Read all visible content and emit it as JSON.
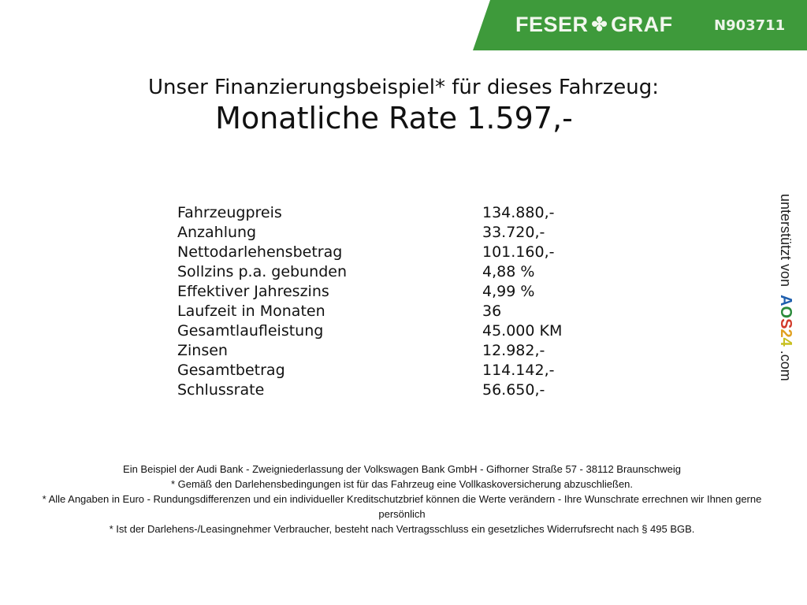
{
  "header": {
    "brand": "FESER",
    "brand2": "GRAF",
    "logo_icon": "clover-icon",
    "code": "N903711",
    "color": "#3e9a3b"
  },
  "title": {
    "line1": "Unser Finanzierungsbeispiel* für dieses Fahrzeug:",
    "line2": "Monatliche Rate 1.597,-"
  },
  "rows": [
    {
      "label": "Fahrzeugpreis",
      "value": "134.880,-"
    },
    {
      "label": "Anzahlung",
      "value": "33.720,-"
    },
    {
      "label": "Nettodarlehensbetrag",
      "value": "101.160,-"
    },
    {
      "label": "Sollzins p.a. gebunden",
      "value": "4,88 %"
    },
    {
      "label": "Effektiver Jahreszins",
      "value": "4,99 %"
    },
    {
      "label": "Laufzeit in Monaten",
      "value": "36"
    },
    {
      "label": "Gesamtlaufleistung",
      "value": "45.000 KM"
    },
    {
      "label": "Zinsen",
      "value": "12.982,-"
    },
    {
      "label": "Gesamtbetrag",
      "value": "114.142,-"
    },
    {
      "label": "Schlussrate",
      "value": "56.650,-"
    }
  ],
  "side": {
    "text": "unterstützt von",
    "a": "A",
    "o": "O",
    "s": "S",
    "two": "2",
    "four": "4",
    "suffix": ".com"
  },
  "footer": [
    "Ein Beispiel der Audi Bank - Zweigniederlassung der Volkswagen Bank GmbH - Gifhorner Straße 57 - 38112 Braunschweig",
    "* Gemäß den Darlehensbedingungen ist für das Fahrzeug eine Vollkaskoversicherung abzuschließen.",
    "* Alle Angaben in Euro - Rundungsdifferenzen und ein individueller Kreditschutzbrief können die Werte verändern - Ihre Wunschrate errechnen wir Ihnen gerne persönlich",
    "* Ist der Darlehens-/Leasingnehmer Verbraucher, besteht nach Vertragsschluss ein gesetzliches Widerrufsrecht nach § 495 BGB."
  ]
}
